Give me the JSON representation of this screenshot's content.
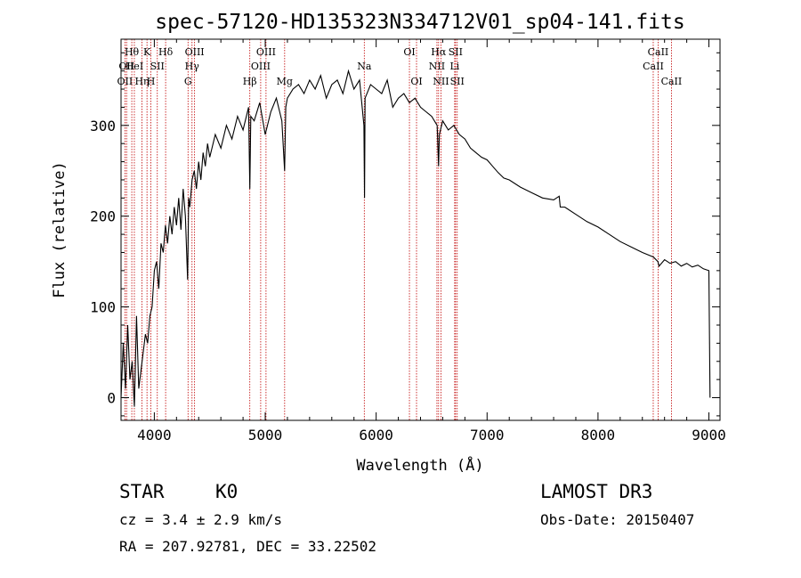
{
  "chart_data": {
    "type": "line",
    "title": "spec-57120-HD135323N334712V01_sp04-141.fits",
    "xlabel": "Wavelength (Å)",
    "ylabel": "Flux (relative)",
    "xlim": [
      3700,
      9100
    ],
    "ylim": [
      -25,
      395
    ],
    "xticks": [
      4000,
      5000,
      6000,
      7000,
      8000,
      9000
    ],
    "yticks": [
      0,
      100,
      200,
      300
    ],
    "series": [
      {
        "name": "flux",
        "x": [
          3700,
          3720,
          3740,
          3760,
          3780,
          3800,
          3820,
          3840,
          3860,
          3880,
          3900,
          3920,
          3940,
          3960,
          3980,
          4000,
          4020,
          4040,
          4060,
          4080,
          4100,
          4120,
          4140,
          4160,
          4180,
          4200,
          4220,
          4240,
          4260,
          4280,
          4300,
          4310,
          4320,
          4340,
          4360,
          4380,
          4400,
          4420,
          4440,
          4460,
          4480,
          4500,
          4550,
          4600,
          4650,
          4700,
          4750,
          4800,
          4850,
          4861,
          4870,
          4900,
          4950,
          5000,
          5050,
          5100,
          5150,
          5175,
          5185,
          5200,
          5250,
          5300,
          5350,
          5400,
          5450,
          5500,
          5550,
          5600,
          5650,
          5700,
          5750,
          5800,
          5850,
          5890,
          5895,
          5900,
          5950,
          6000,
          6050,
          6100,
          6150,
          6200,
          6250,
          6300,
          6350,
          6400,
          6450,
          6500,
          6550,
          6563,
          6570,
          6600,
          6650,
          6700,
          6750,
          6800,
          6850,
          6900,
          6950,
          7000,
          7050,
          7100,
          7150,
          7200,
          7300,
          7400,
          7500,
          7600,
          7650,
          7660,
          7700,
          7800,
          7900,
          8000,
          8100,
          8200,
          8300,
          8400,
          8500,
          8540,
          8550,
          8600,
          8650,
          8700,
          8750,
          8800,
          8850,
          8900,
          8950,
          9000,
          9010
        ],
        "values": [
          0,
          60,
          10,
          80,
          20,
          40,
          -10,
          90,
          10,
          30,
          50,
          70,
          60,
          90,
          100,
          140,
          150,
          120,
          170,
          160,
          190,
          170,
          200,
          180,
          210,
          190,
          220,
          185,
          230,
          200,
          130,
          220,
          210,
          240,
          250,
          230,
          260,
          240,
          270,
          255,
          280,
          265,
          290,
          275,
          300,
          285,
          310,
          295,
          320,
          230,
          310,
          305,
          325,
          290,
          315,
          330,
          305,
          250,
          320,
          330,
          340,
          345,
          335,
          350,
          340,
          355,
          330,
          345,
          350,
          335,
          360,
          340,
          350,
          300,
          220,
          330,
          345,
          340,
          335,
          350,
          320,
          330,
          335,
          325,
          330,
          320,
          315,
          310,
          300,
          255,
          290,
          305,
          295,
          300,
          290,
          285,
          275,
          270,
          265,
          262,
          255,
          248,
          242,
          240,
          232,
          226,
          220,
          218,
          222,
          210,
          210,
          202,
          194,
          188,
          180,
          172,
          166,
          160,
          155,
          150,
          145,
          152,
          148,
          150,
          145,
          148,
          144,
          146,
          142,
          140,
          0
        ]
      }
    ],
    "line_markers": [
      {
        "wl": 3735,
        "label": "OII",
        "row": 2
      },
      {
        "wl": 3750,
        "label": "OII",
        "row": 1
      },
      {
        "wl": 3797,
        "label": "Hθ",
        "row": 0
      },
      {
        "wl": 3820,
        "label": "HeI",
        "row": 1
      },
      {
        "wl": 3889,
        "label": "Hη",
        "row": 2
      },
      {
        "wl": 3934,
        "label": "K",
        "row": 0
      },
      {
        "wl": 3969,
        "label": "H",
        "row": 2
      },
      {
        "wl": 4027,
        "label": "SII",
        "row": 1
      },
      {
        "wl": 4102,
        "label": "Hδ",
        "row": 0
      },
      {
        "wl": 4304,
        "label": "G",
        "row": 2
      },
      {
        "wl": 4340,
        "label": "Hγ",
        "row": 1
      },
      {
        "wl": 4363,
        "label": "OIII",
        "row": 0
      },
      {
        "wl": 4861,
        "label": "Hβ",
        "row": 2
      },
      {
        "wl": 4959,
        "label": "OIII",
        "row": 1
      },
      {
        "wl": 5007,
        "label": "OIII",
        "row": 0
      },
      {
        "wl": 5175,
        "label": "Mg",
        "row": 2
      },
      {
        "wl": 5893,
        "label": "Na",
        "row": 1
      },
      {
        "wl": 6300,
        "label": "OI",
        "row": 0
      },
      {
        "wl": 6364,
        "label": "OI",
        "row": 2
      },
      {
        "wl": 6548,
        "label": "NII",
        "row": 1
      },
      {
        "wl": 6563,
        "label": "Hα",
        "row": 0
      },
      {
        "wl": 6584,
        "label": "NII",
        "row": 2
      },
      {
        "wl": 6708,
        "label": "Li",
        "row": 1
      },
      {
        "wl": 6716,
        "label": "SII",
        "row": 0
      },
      {
        "wl": 6731,
        "label": "SII",
        "row": 2
      },
      {
        "wl": 8498,
        "label": "CaII",
        "row": 1
      },
      {
        "wl": 8542,
        "label": "CaII",
        "row": 0
      },
      {
        "wl": 8662,
        "label": "CaII",
        "row": 2
      }
    ]
  },
  "info": {
    "object_type": "STAR",
    "subclass": "K0",
    "survey": "LAMOST DR3",
    "cz": "cz = 3.4 ± 2.9 km/s",
    "obs_date": "Obs-Date: 20150407",
    "radec": "RA = 207.92781, DEC =  33.22502"
  }
}
